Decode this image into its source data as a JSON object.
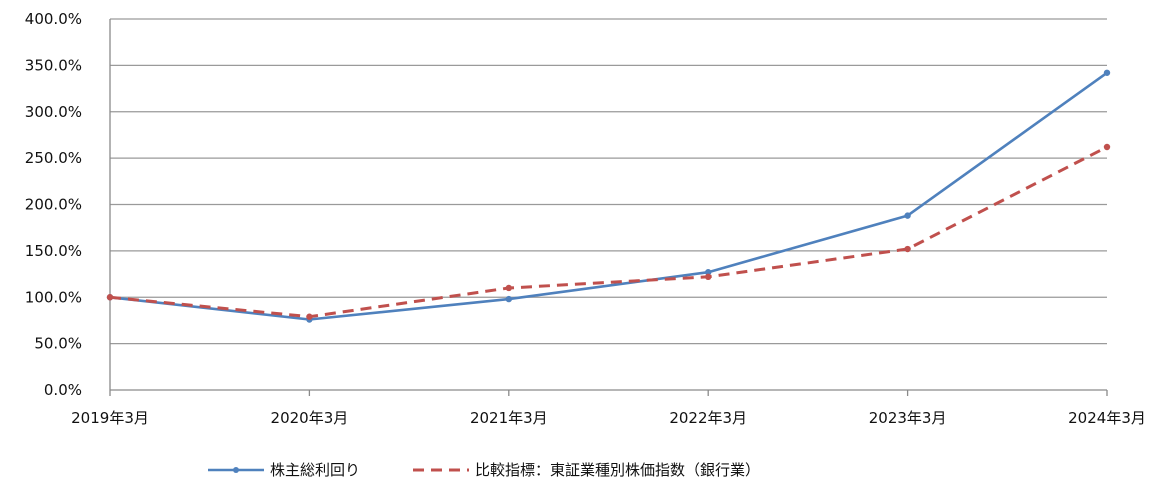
{
  "chart_data": {
    "type": "line",
    "title": "",
    "xlabel": "",
    "ylabel": "",
    "categories": [
      "2019年3月",
      "2020年3月",
      "2021年3月",
      "2022年3月",
      "2023年3月",
      "2024年3月"
    ],
    "y_tick_labels": [
      "0.0%",
      "50.0%",
      "100.0%",
      "150.0%",
      "200.0%",
      "250.0%",
      "300.0%",
      "350.0%",
      "400.0%"
    ],
    "ylim": [
      0,
      400
    ],
    "y_unit": "%",
    "grid": "horizontal",
    "legend_position": "bottom",
    "series": [
      {
        "name": "株主総利回り",
        "values": [
          100.0,
          76.0,
          98.0,
          127.0,
          188.0,
          342.0
        ],
        "color": "#4f81bd",
        "style": "solid"
      },
      {
        "name": "比較指標：東証業種別株価指数（銀行業）",
        "values": [
          100.0,
          79.0,
          110.0,
          122.0,
          152.0,
          262.0
        ],
        "color": "#c0504d",
        "style": "dashed"
      }
    ]
  }
}
